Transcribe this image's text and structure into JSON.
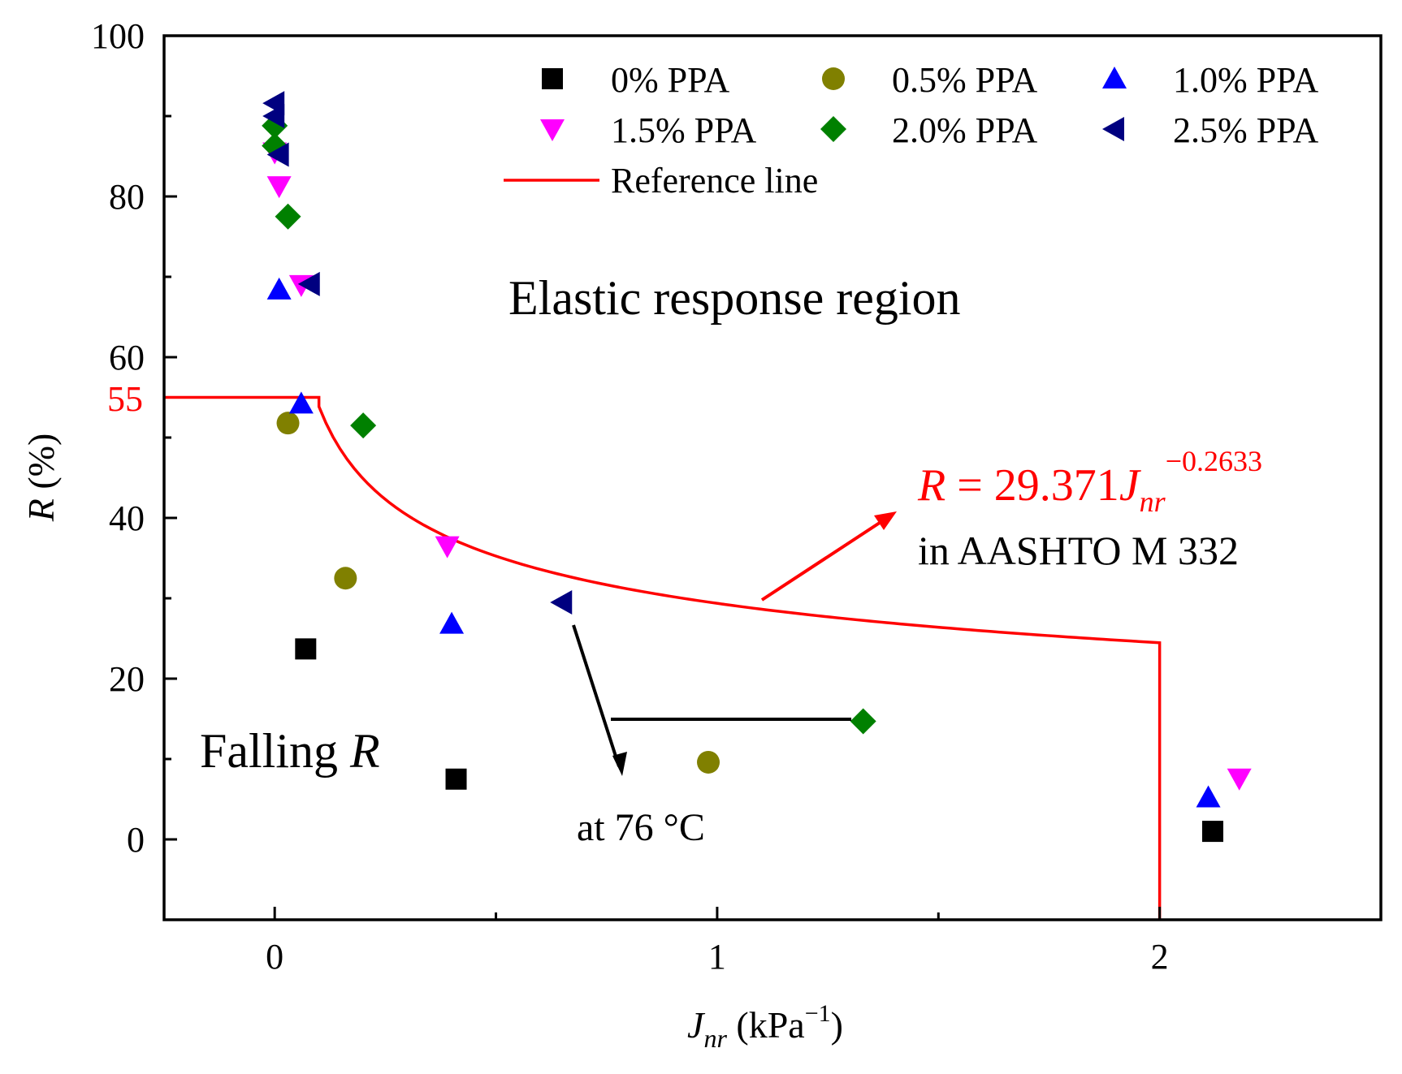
{
  "chart_data": {
    "type": "scatter",
    "title": "",
    "xlabel": {
      "main": "J",
      "sub": "nr",
      "unit_open": "(kPa",
      "unit_sup": "−1",
      "unit_close": ")"
    },
    "ylabel": {
      "main": "R",
      "unit": "(%)"
    },
    "xlim": [
      -0.25,
      2.5
    ],
    "ylim": [
      -10,
      100
    ],
    "x_ticks": [
      0,
      1,
      2
    ],
    "x_minor_ticks": [
      0.5,
      1.5
    ],
    "y_ticks": [
      0,
      20,
      40,
      60,
      80,
      100
    ],
    "y_minor_ticks": [
      10,
      30,
      50,
      70,
      90
    ],
    "special_y_label": {
      "value": 55,
      "text": "55",
      "color": "#ff0000"
    },
    "series": [
      {
        "name": "0% PPA",
        "marker": "square",
        "color": "#000000",
        "points": [
          [
            0.07,
            23.7
          ],
          [
            0.41,
            7.5
          ],
          [
            2.12,
            1.0
          ]
        ]
      },
      {
        "name": "0.5% PPA",
        "marker": "circle",
        "color": "#808000",
        "points": [
          [
            0.03,
            51.8
          ],
          [
            0.16,
            32.5
          ],
          [
            0.98,
            9.6
          ]
        ]
      },
      {
        "name": "1.0% PPA",
        "marker": "triangle-up",
        "color": "#0000ff",
        "points": [
          [
            0.01,
            68.4
          ],
          [
            0.06,
            54.2
          ],
          [
            0.4,
            26.8
          ],
          [
            2.11,
            5.2
          ]
        ]
      },
      {
        "name": "1.5% PPA",
        "marker": "triangle-down",
        "color": "#ff00ff",
        "points": [
          [
            0.0,
            85.5
          ],
          [
            0.01,
            81.3
          ],
          [
            0.06,
            69.0
          ],
          [
            0.39,
            36.5
          ],
          [
            2.18,
            7.6
          ]
        ]
      },
      {
        "name": "2.0% PPA",
        "marker": "diamond",
        "color": "#008000",
        "points": [
          [
            0.0,
            88.8
          ],
          [
            0.0,
            86.3
          ],
          [
            0.03,
            77.5
          ],
          [
            0.2,
            51.5
          ],
          [
            1.33,
            14.7
          ]
        ]
      },
      {
        "name": "2.5% PPA",
        "marker": "triangle-left",
        "color": "#000080",
        "points": [
          [
            0.0,
            91.6
          ],
          [
            0.0,
            90.0
          ],
          [
            0.01,
            85.2
          ],
          [
            0.08,
            69.1
          ],
          [
            0.65,
            29.5
          ]
        ]
      }
    ],
    "reference_line": {
      "name": "Reference line",
      "color": "#ff0000",
      "plateau_value": 55,
      "plateau_end_x": 0.1,
      "coefficient": 29.371,
      "exponent": -0.2633,
      "cutoff_x": 2.0
    },
    "legend_position": "top-right",
    "annotations": {
      "elastic_region": "Elastic response region",
      "falling_r_text": "Falling ",
      "falling_r_var": "R",
      "equation": {
        "var_r": "R",
        "equals": " =  29.371",
        "var_j": "J",
        "sub": "nr",
        "sup": "−0.2633"
      },
      "standard": "in AASHTO M 332",
      "temperature": "at 76 °C"
    }
  }
}
